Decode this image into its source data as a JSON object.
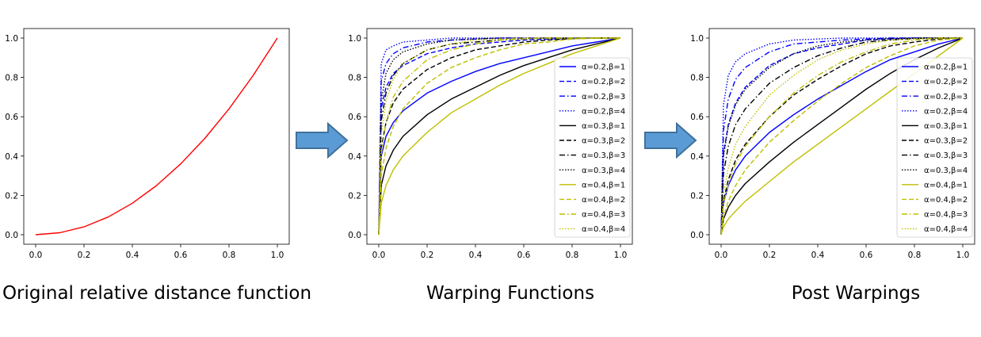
{
  "captions": [
    "Original relative distance function",
    "Warping Functions",
    "Post Warpings"
  ],
  "colors": {
    "arrow_fill": "#5b9bd5",
    "arrow_stroke": "#41719c"
  },
  "chart_data": [
    {
      "type": "line",
      "title": "",
      "xlabel": "",
      "ylabel": "",
      "xlim": [
        0,
        1
      ],
      "ylim": [
        0,
        1
      ],
      "xticks": [
        "0.0",
        "0.2",
        "0.4",
        "0.6",
        "0.8",
        "1.0"
      ],
      "yticks": [
        "0.0",
        "0.2",
        "0.4",
        "0.6",
        "0.8",
        "1.0"
      ],
      "grid": false,
      "series": [
        {
          "color": "#ff0000",
          "style": "solid",
          "x": [
            0,
            0.1,
            0.2,
            0.3,
            0.4,
            0.5,
            0.6,
            0.7,
            0.8,
            0.9,
            1.0
          ],
          "y": [
            0,
            0.01,
            0.04,
            0.09,
            0.16,
            0.25,
            0.36,
            0.49,
            0.64,
            0.81,
            1.0
          ]
        }
      ]
    },
    {
      "type": "line",
      "title": "",
      "xlabel": "",
      "ylabel": "",
      "xlim": [
        0,
        1
      ],
      "ylim": [
        0,
        1
      ],
      "xticks": [
        "0.0",
        "0.2",
        "0.4",
        "0.6",
        "0.8",
        "1.0"
      ],
      "yticks": [
        "0.0",
        "0.2",
        "0.4",
        "0.6",
        "0.8",
        "1.0"
      ],
      "grid": false,
      "legend": "right",
      "x": [
        0,
        0.01,
        0.03,
        0.06,
        0.1,
        0.2,
        0.3,
        0.4,
        0.5,
        0.6,
        0.7,
        0.8,
        0.9,
        1.0
      ],
      "series": [
        {
          "name": "α=0.2,β=1",
          "color": "#0000ff",
          "style": "solid",
          "y": [
            0,
            0.4,
            0.5,
            0.57,
            0.63,
            0.72,
            0.78,
            0.83,
            0.87,
            0.9,
            0.93,
            0.96,
            0.98,
            1.0
          ]
        },
        {
          "name": "α=0.2,β=2",
          "color": "#0000ff",
          "style": "dashed",
          "y": [
            0,
            0.64,
            0.75,
            0.82,
            0.86,
            0.92,
            0.95,
            0.97,
            0.98,
            0.99,
            0.995,
            0.998,
            1.0,
            1.0
          ]
        },
        {
          "name": "α=0.2,β=3",
          "color": "#0000ff",
          "style": "dashdot",
          "y": [
            0,
            0.78,
            0.87,
            0.92,
            0.95,
            0.98,
            0.99,
            0.995,
            1.0,
            1.0,
            1.0,
            1.0,
            1.0,
            1.0
          ]
        },
        {
          "name": "α=0.2,β=4",
          "color": "#0000ff",
          "style": "dotted",
          "y": [
            0,
            0.87,
            0.94,
            0.96,
            0.98,
            0.99,
            1.0,
            1.0,
            1.0,
            1.0,
            1.0,
            1.0,
            1.0,
            1.0
          ]
        },
        {
          "name": "α=0.3,β=1",
          "color": "#000000",
          "style": "solid",
          "y": [
            0,
            0.25,
            0.35,
            0.43,
            0.5,
            0.61,
            0.69,
            0.75,
            0.81,
            0.86,
            0.9,
            0.94,
            0.97,
            1.0
          ]
        },
        {
          "name": "α=0.3,β=2",
          "color": "#000000",
          "style": "dashed",
          "y": [
            0,
            0.44,
            0.57,
            0.67,
            0.74,
            0.84,
            0.9,
            0.94,
            0.96,
            0.98,
            0.99,
            0.997,
            1.0,
            1.0
          ]
        },
        {
          "name": "α=0.3,β=3",
          "color": "#000000",
          "style": "dashdot",
          "y": [
            0,
            0.58,
            0.72,
            0.81,
            0.87,
            0.94,
            0.97,
            0.98,
            0.99,
            0.995,
            1.0,
            1.0,
            1.0,
            1.0
          ]
        },
        {
          "name": "α=0.3,β=4",
          "color": "#000000",
          "style": "dotted",
          "y": [
            0,
            0.68,
            0.82,
            0.89,
            0.93,
            0.97,
            0.99,
            0.995,
            1.0,
            1.0,
            1.0,
            1.0,
            1.0,
            1.0
          ]
        },
        {
          "name": "α=0.4,β=1",
          "color": "#bfbf00",
          "style": "solid",
          "y": [
            0,
            0.16,
            0.25,
            0.33,
            0.4,
            0.52,
            0.62,
            0.69,
            0.76,
            0.82,
            0.87,
            0.92,
            0.96,
            1.0
          ]
        },
        {
          "name": "α=0.4,β=2",
          "color": "#bfbf00",
          "style": "dashed",
          "y": [
            0,
            0.3,
            0.44,
            0.55,
            0.64,
            0.77,
            0.85,
            0.9,
            0.94,
            0.97,
            0.98,
            0.995,
            1.0,
            1.0
          ]
        },
        {
          "name": "α=0.4,β=3",
          "color": "#bfbf00",
          "style": "dashdot",
          "y": [
            0,
            0.41,
            0.57,
            0.7,
            0.78,
            0.89,
            0.94,
            0.97,
            0.99,
            0.995,
            1.0,
            1.0,
            1.0,
            1.0
          ]
        },
        {
          "name": "α=0.4,β=4",
          "color": "#bfbf00",
          "style": "dotted",
          "y": [
            0,
            0.51,
            0.68,
            0.79,
            0.87,
            0.94,
            0.97,
            0.99,
            0.995,
            1.0,
            1.0,
            1.0,
            1.0,
            1.0
          ]
        }
      ]
    },
    {
      "type": "line",
      "title": "",
      "xlabel": "",
      "ylabel": "",
      "xlim": [
        0,
        1
      ],
      "ylim": [
        0,
        1
      ],
      "xticks": [
        "0.0",
        "0.2",
        "0.4",
        "0.6",
        "0.8",
        "1.0"
      ],
      "yticks": [
        "0.0",
        "0.2",
        "0.4",
        "0.6",
        "0.8",
        "1.0"
      ],
      "grid": false,
      "legend": "right",
      "x": [
        0,
        0.01,
        0.03,
        0.06,
        0.1,
        0.2,
        0.3,
        0.4,
        0.5,
        0.6,
        0.7,
        0.8,
        0.9,
        1.0
      ],
      "series": [
        {
          "name": "α=0.2,β=1",
          "color": "#0000ff",
          "style": "solid",
          "y": [
            0,
            0.16,
            0.25,
            0.33,
            0.4,
            0.52,
            0.61,
            0.69,
            0.76,
            0.83,
            0.89,
            0.93,
            0.97,
            1.0
          ]
        },
        {
          "name": "α=0.2,β=2",
          "color": "#0000ff",
          "style": "dashed",
          "y": [
            0,
            0.41,
            0.56,
            0.67,
            0.75,
            0.86,
            0.92,
            0.95,
            0.97,
            0.99,
            0.995,
            1.0,
            1.0,
            1.0
          ]
        },
        {
          "name": "α=0.2,β=3",
          "color": "#0000ff",
          "style": "dashdot",
          "y": [
            0,
            0.53,
            0.69,
            0.79,
            0.85,
            0.93,
            0.97,
            0.98,
            0.99,
            0.995,
            1.0,
            1.0,
            1.0,
            1.0
          ]
        },
        {
          "name": "α=0.2,β=4",
          "color": "#0000ff",
          "style": "dotted",
          "y": [
            0,
            0.66,
            0.81,
            0.88,
            0.92,
            0.97,
            0.99,
            0.995,
            1.0,
            1.0,
            1.0,
            1.0,
            1.0,
            1.0
          ]
        },
        {
          "name": "α=0.3,β=1",
          "color": "#000000",
          "style": "solid",
          "y": [
            0,
            0.08,
            0.14,
            0.2,
            0.26,
            0.37,
            0.47,
            0.56,
            0.65,
            0.74,
            0.82,
            0.89,
            0.95,
            1.0
          ]
        },
        {
          "name": "α=0.3,β=2",
          "color": "#000000",
          "style": "dashed",
          "y": [
            0,
            0.17,
            0.28,
            0.38,
            0.46,
            0.6,
            0.71,
            0.79,
            0.86,
            0.92,
            0.96,
            0.98,
            0.995,
            1.0
          ]
        },
        {
          "name": "α=0.3,β=3",
          "color": "#000000",
          "style": "dashdot",
          "y": [
            0,
            0.31,
            0.45,
            0.56,
            0.64,
            0.77,
            0.85,
            0.91,
            0.95,
            0.98,
            0.99,
            0.997,
            1.0,
            1.0
          ]
        },
        {
          "name": "α=0.3,β=4",
          "color": "#000000",
          "style": "dotted",
          "y": [
            0,
            0.4,
            0.55,
            0.66,
            0.74,
            0.85,
            0.92,
            0.96,
            0.98,
            0.99,
            0.997,
            1.0,
            1.0,
            1.0
          ]
        },
        {
          "name": "α=0.4,β=1",
          "color": "#bfbf00",
          "style": "solid",
          "y": [
            0,
            0.04,
            0.08,
            0.12,
            0.17,
            0.27,
            0.37,
            0.46,
            0.55,
            0.64,
            0.73,
            0.82,
            0.91,
            1.0
          ]
        },
        {
          "name": "α=0.4,β=2",
          "color": "#bfbf00",
          "style": "dashed",
          "y": [
            0,
            0.09,
            0.17,
            0.25,
            0.33,
            0.47,
            0.58,
            0.68,
            0.77,
            0.85,
            0.91,
            0.96,
            0.99,
            1.0
          ]
        },
        {
          "name": "α=0.4,β=3",
          "color": "#bfbf00",
          "style": "dashdot",
          "y": [
            0,
            0.15,
            0.26,
            0.36,
            0.45,
            0.6,
            0.72,
            0.81,
            0.88,
            0.93,
            0.97,
            0.99,
            1.0,
            1.0
          ]
        },
        {
          "name": "α=0.4,β=4",
          "color": "#bfbf00",
          "style": "dotted",
          "y": [
            0,
            0.21,
            0.34,
            0.46,
            0.55,
            0.71,
            0.81,
            0.89,
            0.94,
            0.97,
            0.99,
            0.997,
            1.0,
            1.0
          ]
        }
      ]
    }
  ]
}
